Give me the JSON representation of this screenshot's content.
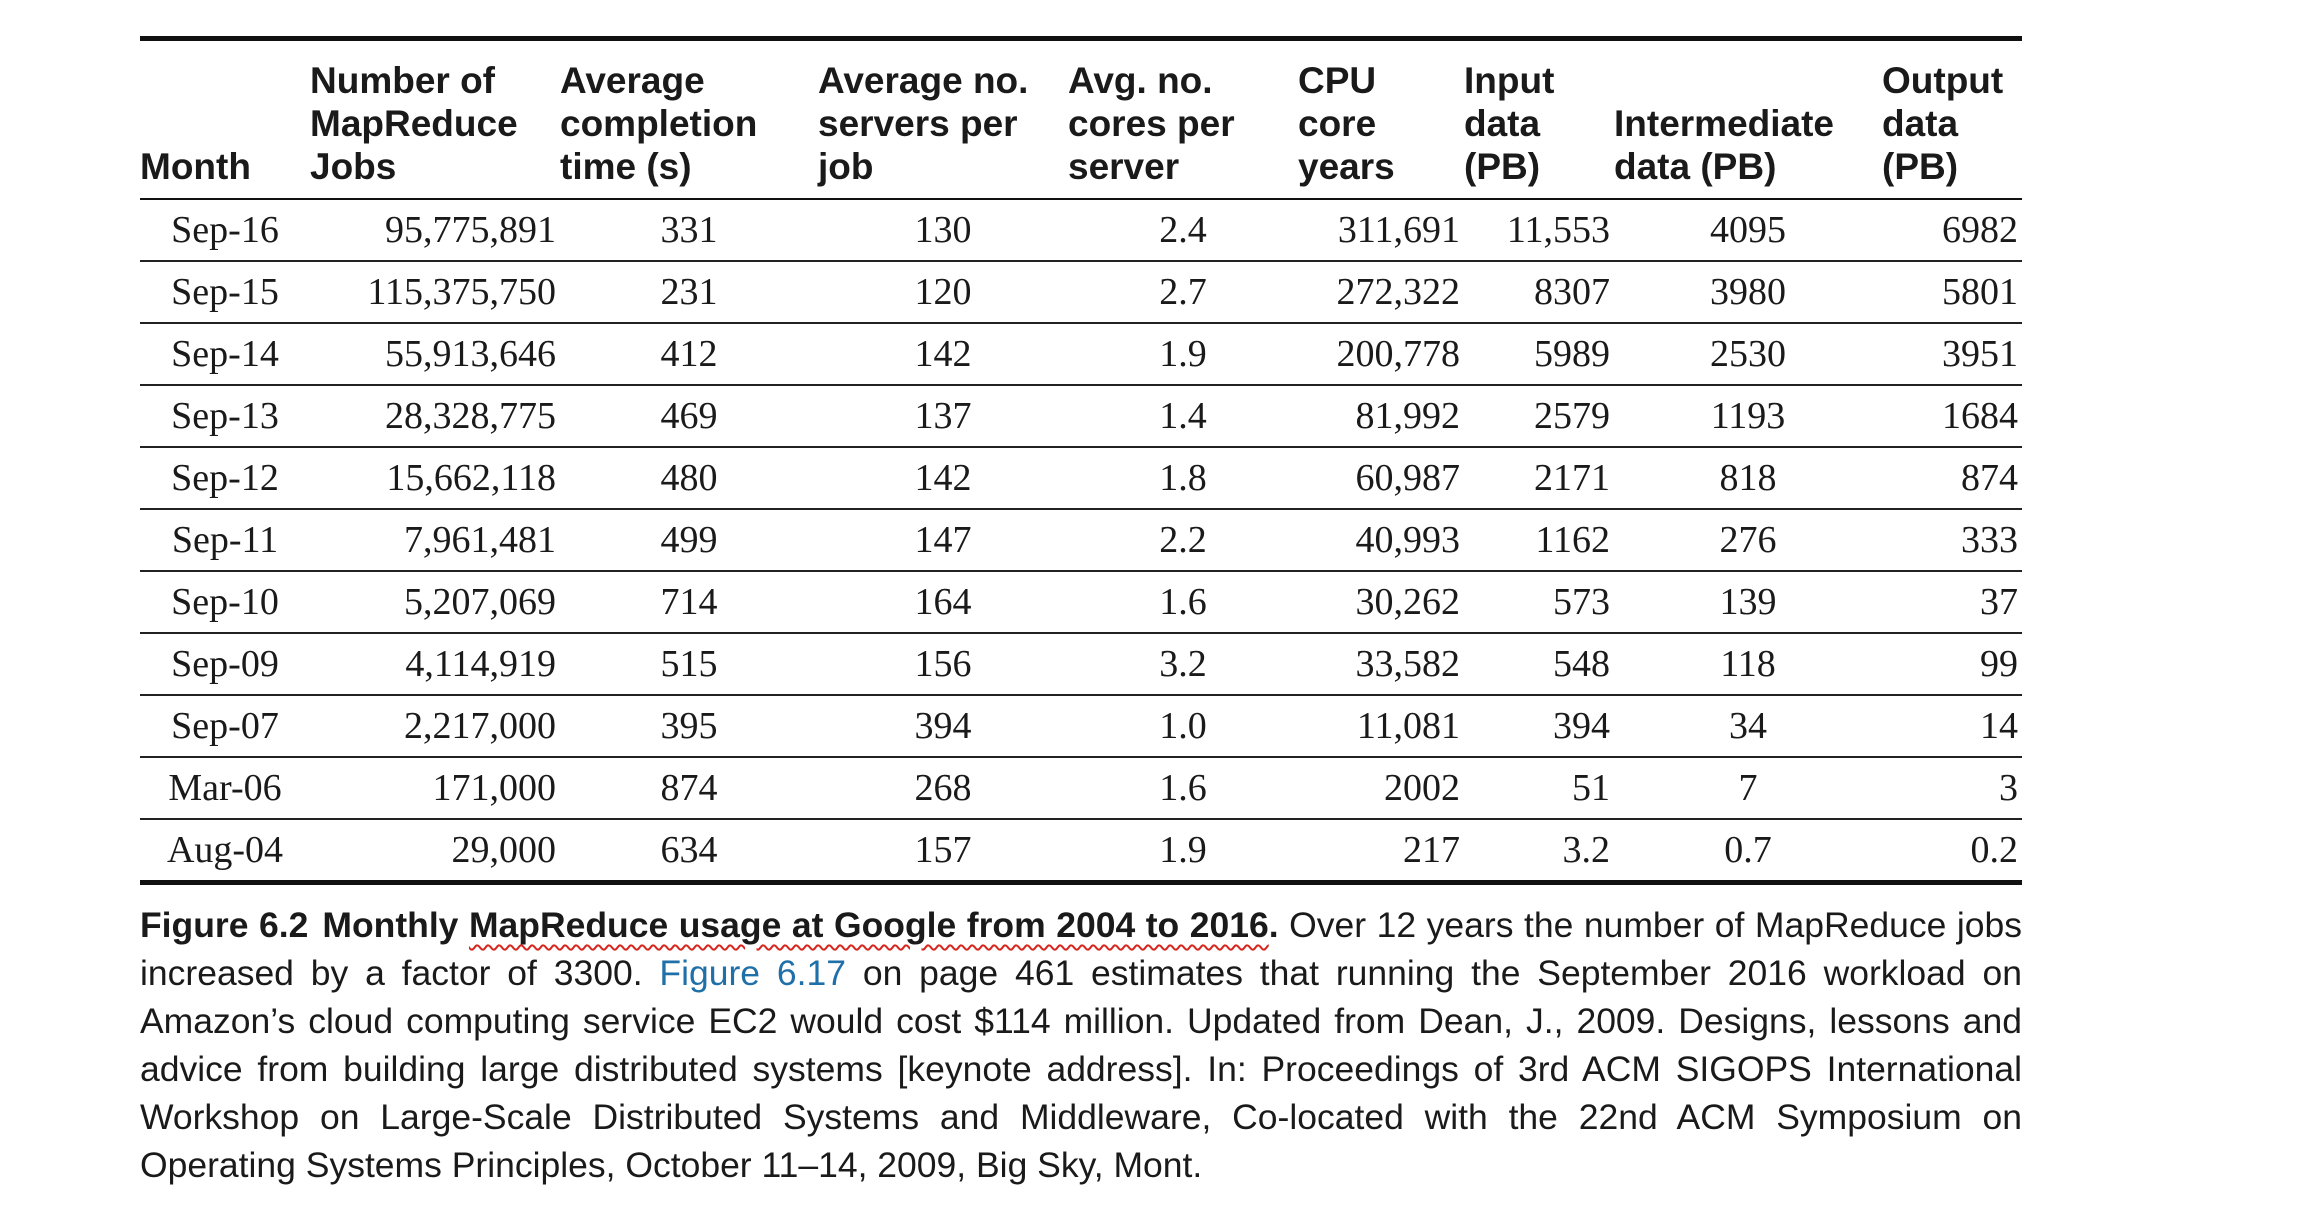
{
  "table": {
    "headers": {
      "month": "Month",
      "jobs": [
        "Number of",
        "MapReduce",
        "Jobs"
      ],
      "completion": [
        "Average",
        "completion",
        "time (s)"
      ],
      "servers": [
        "Average no.",
        "servers per",
        "job"
      ],
      "cores": [
        "Avg. no.",
        "cores per",
        "server"
      ],
      "cpu": [
        "CPU",
        "core",
        "years"
      ],
      "input": [
        "Input",
        "data",
        "(PB)"
      ],
      "intermediate": [
        "Intermediate",
        "data (PB)"
      ],
      "output": [
        "Output",
        "data",
        "(PB)"
      ]
    },
    "rows": [
      [
        "Sep-16",
        "95,775,891",
        "331",
        "130",
        "2.4",
        "311,691",
        "11,553",
        "4095",
        "6982"
      ],
      [
        "Sep-15",
        "115,375,750",
        "231",
        "120",
        "2.7",
        "272,322",
        "8307",
        "3980",
        "5801"
      ],
      [
        "Sep-14",
        "55,913,646",
        "412",
        "142",
        "1.9",
        "200,778",
        "5989",
        "2530",
        "3951"
      ],
      [
        "Sep-13",
        "28,328,775",
        "469",
        "137",
        "1.4",
        "81,992",
        "2579",
        "1193",
        "1684"
      ],
      [
        "Sep-12",
        "15,662,118",
        "480",
        "142",
        "1.8",
        "60,987",
        "2171",
        "818",
        "874"
      ],
      [
        "Sep-11",
        "7,961,481",
        "499",
        "147",
        "2.2",
        "40,993",
        "1162",
        "276",
        "333"
      ],
      [
        "Sep-10",
        "5,207,069",
        "714",
        "164",
        "1.6",
        "30,262",
        "573",
        "139",
        "37"
      ],
      [
        "Sep-09",
        "4,114,919",
        "515",
        "156",
        "3.2",
        "33,582",
        "548",
        "118",
        "99"
      ],
      [
        "Sep-07",
        "2,217,000",
        "395",
        "394",
        "1.0",
        "11,081",
        "394",
        "34",
        "14"
      ],
      [
        "Mar-06",
        "171,000",
        "874",
        "268",
        "1.6",
        "2002",
        "51",
        "7",
        "3"
      ],
      [
        "Aug-04",
        "29,000",
        "634",
        "157",
        "1.9",
        "217",
        "3.2",
        "0.7",
        "0.2"
      ]
    ]
  },
  "caption": {
    "label": "Figure 6.2",
    "title_prefix": "Monthly ",
    "title_underlined": "MapReduce usage at Google from 2004 to 2016",
    "title_suffix": ".",
    "text1": " Over 12 years the number of MapReduce jobs increased by a factor of 3300. ",
    "link": "Figure 6.17",
    "text2": " on page 461 estimates that running the September 2016 workload on Amazon’s cloud computing service EC2 would cost $114 million. Updated from Dean, J., 2009. Designs, lessons and advice from building large distributed systems [keynote address]. In: Proceedings of 3rd ACM SIGOPS International Workshop on Large-Scale Distributed Systems and Middleware, Co-located with the 22nd ACM Symposium on Operating Systems Principles, October 11–14, 2009, Big Sky, Mont.",
    "underline_color": "#d6271f",
    "link_color": "#1f6fa8"
  }
}
